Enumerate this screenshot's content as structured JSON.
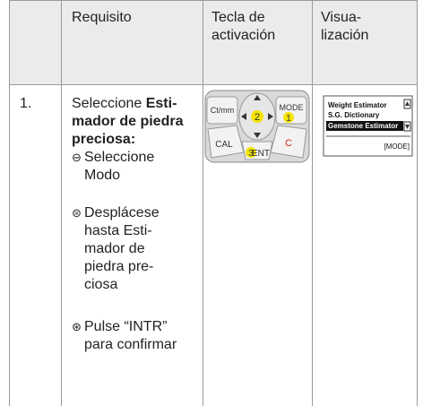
{
  "table": {
    "header": [
      "Requisito",
      "Tecla de activación",
      "Visua-lización"
    ],
    "row": {
      "number": "1.",
      "intro": {
        "plain": "Seleccione ",
        "bold": "Esti-mador de piedra preciosa:"
      },
      "steps": [
        {
          "symbol": "⊖",
          "lines": [
            "Seleccione",
            "Modo"
          ]
        },
        {
          "symbol": "⊜",
          "lines": [
            "Desplácese",
            "hasta Esti-",
            "mador de",
            "piedra pre-",
            "ciosa"
          ]
        },
        {
          "symbol": "⊛",
          "lines": [
            "Pulse “INTR”",
            "para confirmar"
          ]
        }
      ],
      "keypad": {
        "keys": [
          "Ct/mm",
          "MODE",
          "CAL",
          "C",
          "ENT"
        ],
        "step_numbers": [
          "2",
          "1",
          "3"
        ]
      },
      "display": {
        "items": [
          "Weight Estimator",
          "S.G. Dictionary",
          "Gemstone Estimator"
        ],
        "footer": "[MODE]"
      }
    }
  }
}
